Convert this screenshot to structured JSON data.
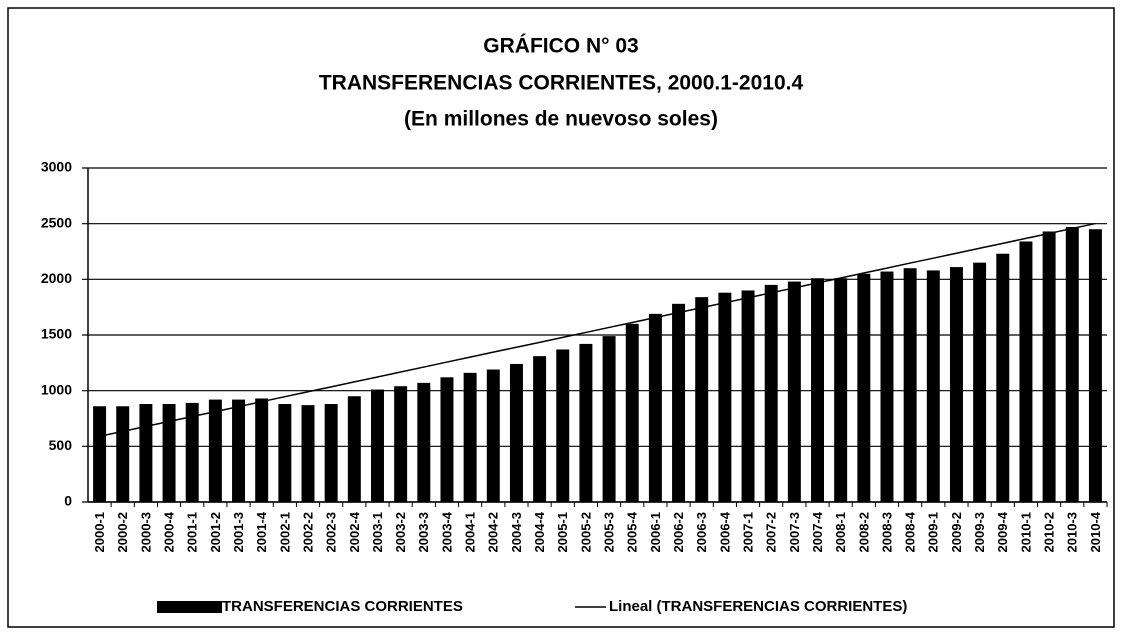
{
  "chart_data": {
    "type": "bar",
    "title": "GRÁFICO N° 03",
    "subtitle": "TRANSFERENCIAS CORRIENTES, 2000.1-2010.4",
    "subtitle2": "(En millones de nuevoso soles)",
    "categories": [
      "2000-1",
      "2000-2",
      "2000-3",
      "2000-4",
      "2001-1",
      "2001-2",
      "2001-3",
      "2001-4",
      "2002-1",
      "2002-2",
      "2002-3",
      "2002-4",
      "2003-1",
      "2003-2",
      "2003-3",
      "2003-4",
      "2004-1",
      "2004-2",
      "2004-3",
      "2004-4",
      "2005-1",
      "2005-2",
      "2005-3",
      "2005-4",
      "2006-1",
      "2006-2",
      "2006-3",
      "2006-4",
      "2007-1",
      "2007-2",
      "2007-3",
      "2007-4",
      "2008-1",
      "2008-2",
      "2008-3",
      "2008-4",
      "2009-1",
      "2009-2",
      "2009-3",
      "2009-4",
      "2010-1",
      "2010-2",
      "2010-3",
      "2010-4"
    ],
    "series": [
      {
        "name": "TRANSFERENCIAS CORRIENTES",
        "type": "bar",
        "color": "#000000",
        "values": [
          860,
          860,
          880,
          880,
          890,
          920,
          920,
          930,
          880,
          870,
          880,
          950,
          1010,
          1040,
          1070,
          1120,
          1160,
          1190,
          1240,
          1310,
          1370,
          1420,
          1490,
          1600,
          1690,
          1780,
          1840,
          1880,
          1900,
          1950,
          1980,
          2010,
          2010,
          2050,
          2070,
          2100,
          2080,
          2110,
          2150,
          2230,
          2340,
          2430,
          2470,
          2450
        ]
      },
      {
        "name": "Lineal (TRANSFERENCIAS CORRIENTES)",
        "type": "line",
        "color": "#000000",
        "values": [
          590,
          634,
          679,
          723,
          768,
          812,
          857,
          901,
          946,
          990,
          1034,
          1079,
          1123,
          1168,
          1212,
          1257,
          1301,
          1346,
          1390,
          1434,
          1479,
          1523,
          1568,
          1612,
          1657,
          1701,
          1746,
          1790,
          1834,
          1879,
          1923,
          1968,
          2012,
          2057,
          2101,
          2146,
          2190,
          2234,
          2279,
          2323,
          2368,
          2412,
          2457,
          2501
        ]
      }
    ],
    "ylim": [
      0,
      3000
    ],
    "yticks": [
      0,
      500,
      1000,
      1500,
      2000,
      2500,
      3000
    ],
    "grid": true
  }
}
